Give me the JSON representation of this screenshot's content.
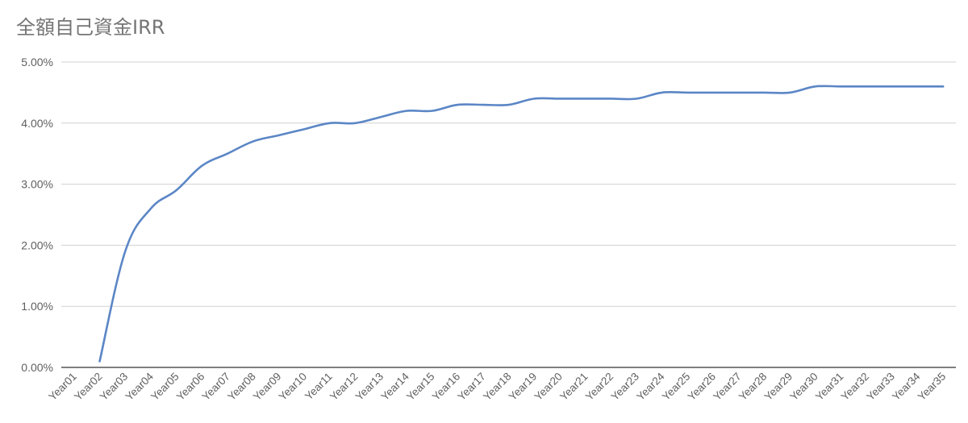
{
  "chart_data": {
    "type": "line",
    "title": "全額自己資金IRR",
    "xlabel": "",
    "ylabel": "",
    "ylim": [
      0,
      0.05
    ],
    "yticks": [
      "0.00%",
      "1.00%",
      "2.00%",
      "3.00%",
      "4.00%",
      "5.00%"
    ],
    "grid": true,
    "legend": "none",
    "categories": [
      "Year01",
      "Year02",
      "Year03",
      "Year04",
      "Year05",
      "Year06",
      "Year07",
      "Year08",
      "Year09",
      "Year10",
      "Year11",
      "Year12",
      "Year13",
      "Year14",
      "Year15",
      "Year16",
      "Year17",
      "Year18",
      "Year19",
      "Year20",
      "Year21",
      "Year22",
      "Year23",
      "Year24",
      "Year25",
      "Year26",
      "Year27",
      "Year28",
      "Year29",
      "Year30",
      "Year31",
      "Year32",
      "Year33",
      "Year34",
      "Year35"
    ],
    "series": [
      {
        "color": "#5b86c6",
        "values": [
          null,
          0.001,
          0.019,
          0.026,
          0.029,
          0.033,
          0.035,
          0.037,
          0.038,
          0.039,
          0.04,
          0.04,
          0.041,
          0.042,
          0.042,
          0.043,
          0.043,
          0.043,
          0.044,
          0.044,
          0.044,
          0.044,
          0.044,
          0.045,
          0.045,
          0.045,
          0.045,
          0.045,
          0.045,
          0.046,
          0.046,
          0.046,
          0.046,
          0.046,
          0.046
        ]
      }
    ]
  }
}
